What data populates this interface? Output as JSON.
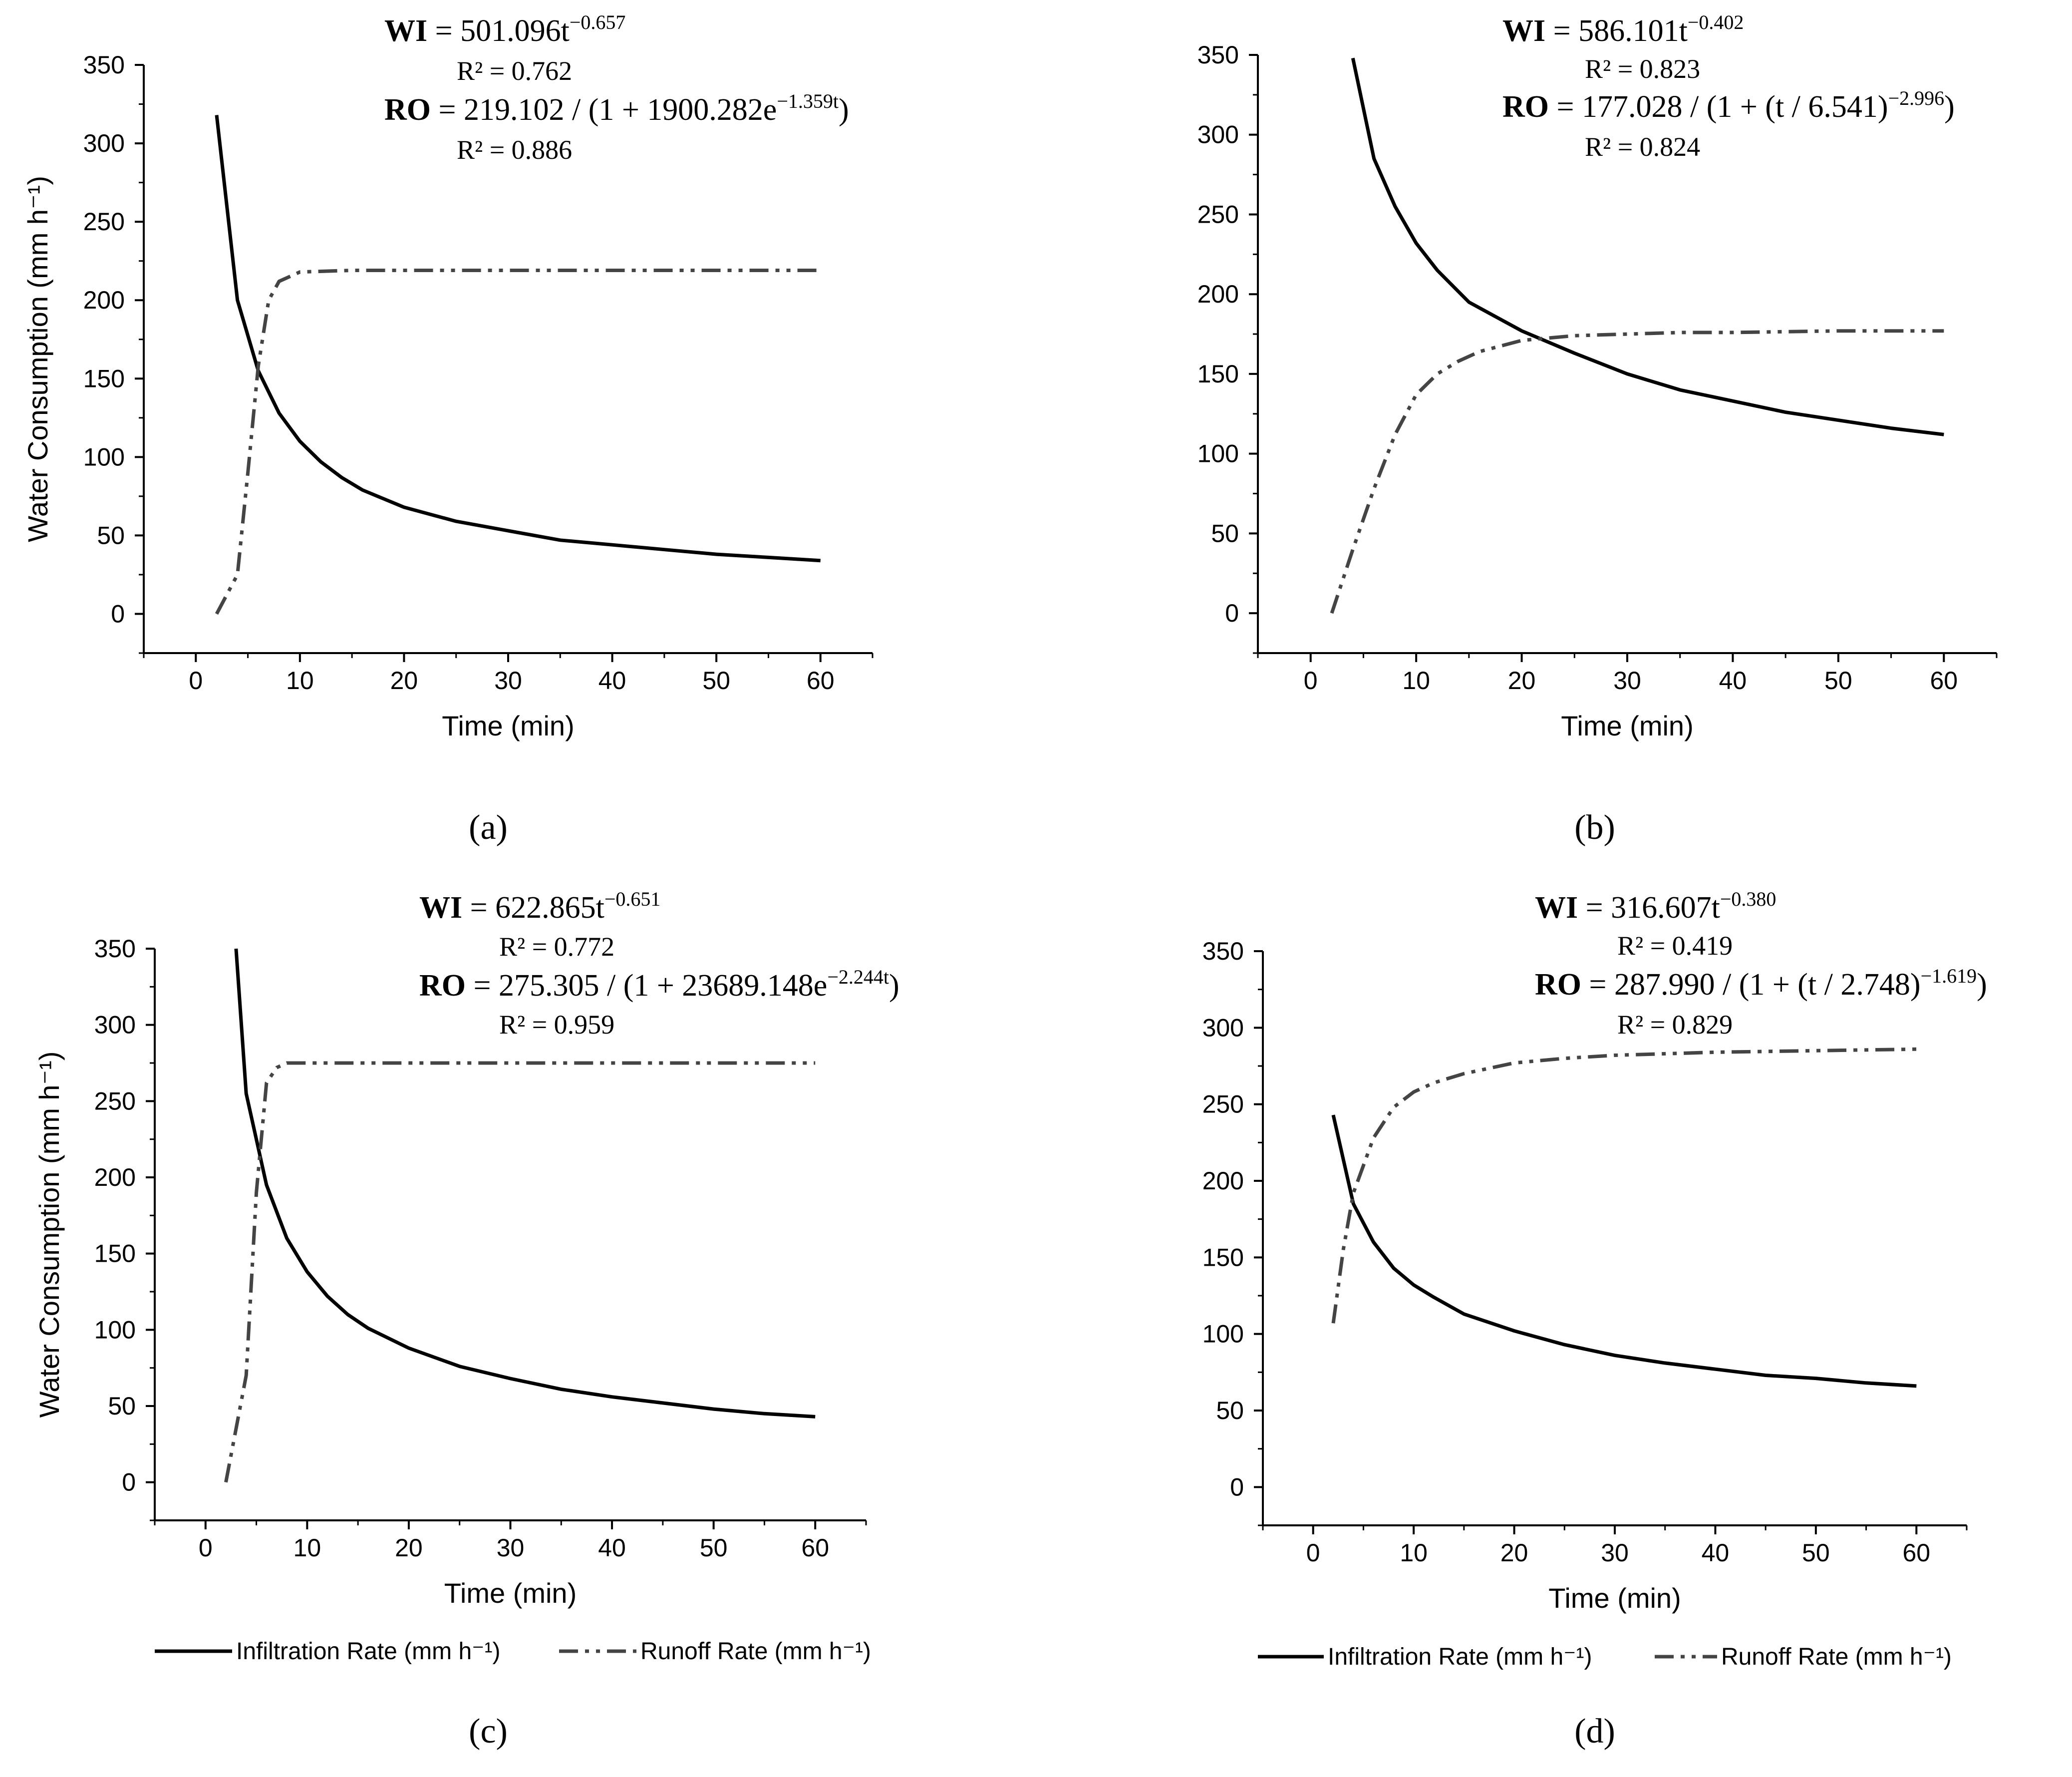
{
  "chart_data": [
    {
      "panel": "a",
      "type": "line",
      "xlabel": "Time (min)",
      "ylabel": "Water Consumption (mm h⁻¹)",
      "xlim": [
        -5,
        65
      ],
      "ylim": [
        -25,
        350
      ],
      "xticks": [
        0,
        10,
        20,
        30,
        40,
        50,
        60
      ],
      "yticks": [
        0,
        50,
        100,
        150,
        200,
        250,
        300,
        350
      ],
      "equations": {
        "wi_label": "WI",
        "wi_rhs": " = 501.096t",
        "wi_exp": "−0.657",
        "wi_r2": "R² = 0.762",
        "ro_label": "RO",
        "ro_rhs": " = 219.102 / (1 + 1900.282e",
        "ro_exp": "−1.359t",
        "ro_close": ")",
        "ro_r2": "R² = 0.886"
      },
      "series": [
        {
          "name": "Infiltration Rate (mm h⁻¹)",
          "style": "solid",
          "x": [
            2,
            4,
            6,
            8,
            10,
            12,
            14,
            16,
            20,
            25,
            30,
            35,
            40,
            45,
            50,
            55,
            60
          ],
          "y": [
            318,
            200,
            155,
            128,
            110,
            97,
            87,
            79,
            68,
            59,
            53,
            47,
            44,
            41,
            38,
            36,
            34
          ]
        },
        {
          "name": "Runoff Rate (mm h⁻¹)",
          "style": "dash-dot-dot",
          "x": [
            2,
            4,
            5,
            6,
            7,
            8,
            10,
            15,
            20,
            30,
            40,
            50,
            60
          ],
          "y": [
            0,
            25,
            90,
            158,
            200,
            212,
            218,
            219,
            219,
            219,
            219,
            219,
            219
          ]
        }
      ]
    },
    {
      "panel": "b",
      "type": "line",
      "xlabel": "Time (min)",
      "ylabel": "",
      "xlim": [
        -5,
        65
      ],
      "ylim": [
        -25,
        350
      ],
      "xticks": [
        0,
        10,
        20,
        30,
        40,
        50,
        60
      ],
      "yticks": [
        0,
        50,
        100,
        150,
        200,
        250,
        300,
        350
      ],
      "equations": {
        "wi_label": "WI",
        "wi_rhs": " = 586.101t",
        "wi_exp": "−0.402",
        "wi_r2": "R² = 0.823",
        "ro_label": "RO",
        "ro_rhs": " = 177.028 / (1 + (t / 6.541)",
        "ro_exp": "−2.996",
        "ro_close": ")",
        "ro_r2": "R² = 0.824"
      },
      "series": [
        {
          "name": "Infiltration Rate (mm h⁻¹)",
          "style": "solid",
          "x": [
            4,
            6,
            8,
            10,
            12,
            15,
            20,
            25,
            30,
            35,
            40,
            45,
            50,
            55,
            60
          ],
          "y": [
            348,
            285,
            255,
            232,
            215,
            195,
            177,
            163,
            150,
            140,
            133,
            126,
            121,
            116,
            112
          ]
        },
        {
          "name": "Runoff Rate (mm h⁻¹)",
          "style": "dash-dot-dot",
          "x": [
            2,
            4,
            6,
            8,
            10,
            12,
            14,
            16,
            20,
            25,
            30,
            35,
            40,
            50,
            60
          ],
          "y": [
            0,
            40,
            78,
            112,
            137,
            150,
            158,
            164,
            171,
            174,
            175,
            176,
            176,
            177,
            177
          ]
        }
      ]
    },
    {
      "panel": "c",
      "type": "line",
      "xlabel": "Time (min)",
      "ylabel": "Water Consumption (mm h⁻¹)",
      "xlim": [
        -5,
        65
      ],
      "ylim": [
        -25,
        350
      ],
      "xticks": [
        0,
        10,
        20,
        30,
        40,
        50,
        60
      ],
      "yticks": [
        0,
        50,
        100,
        150,
        200,
        250,
        300,
        350
      ],
      "equations": {
        "wi_label": "WI",
        "wi_rhs": " = 622.865t",
        "wi_exp": "−0.651",
        "wi_r2": "R² = 0.772",
        "ro_label": "RO",
        "ro_rhs": " = 275.305 / (1 + 23689.148e",
        "ro_exp": "−2.244t",
        "ro_close": ")",
        "ro_r2": "R² = 0.959"
      },
      "series": [
        {
          "name": "Infiltration Rate (mm h⁻¹)",
          "style": "solid",
          "x": [
            3,
            4,
            6,
            8,
            10,
            12,
            14,
            16,
            20,
            25,
            30,
            35,
            40,
            45,
            50,
            55,
            60
          ],
          "y": [
            350,
            255,
            195,
            160,
            138,
            122,
            110,
            101,
            88,
            76,
            68,
            61,
            56,
            52,
            48,
            45,
            43
          ]
        },
        {
          "name": "Runoff Rate (mm h⁻¹)",
          "style": "dash-dot-dot",
          "x": [
            2,
            4,
            5,
            6,
            7,
            8,
            10,
            15,
            20,
            30,
            40,
            50,
            60
          ],
          "y": [
            0,
            70,
            190,
            262,
            272,
            275,
            275,
            275,
            275,
            275,
            275,
            275,
            275
          ]
        }
      ]
    },
    {
      "panel": "d",
      "type": "line",
      "xlabel": "Time (min)",
      "ylabel": "",
      "xlim": [
        -5,
        65
      ],
      "ylim": [
        -25,
        350
      ],
      "xticks": [
        0,
        10,
        20,
        30,
        40,
        50,
        60
      ],
      "yticks": [
        0,
        50,
        100,
        150,
        200,
        250,
        300,
        350
      ],
      "equations": {
        "wi_label": "WI",
        "wi_rhs": " = 316.607t",
        "wi_exp": "−0.380",
        "wi_r2": "R² = 0.419",
        "ro_label": "RO",
        "ro_rhs": " = 287.990 / (1 + (t / 2.748)",
        "ro_exp": "−1.619",
        "ro_close": ")",
        "ro_r2": "R² = 0.829"
      },
      "series": [
        {
          "name": "Infiltration Rate (mm h⁻¹)",
          "style": "solid",
          "x": [
            2,
            4,
            6,
            8,
            10,
            12,
            15,
            20,
            25,
            30,
            35,
            40,
            45,
            50,
            55,
            60
          ],
          "y": [
            243,
            185,
            160,
            143,
            132,
            124,
            113,
            102,
            93,
            86,
            81,
            77,
            73,
            71,
            68,
            66
          ]
        },
        {
          "name": "Runoff Rate (mm h⁻¹)",
          "style": "dash-dot-dot",
          "x": [
            2,
            3,
            4,
            6,
            8,
            10,
            12,
            15,
            20,
            25,
            30,
            40,
            50,
            60
          ],
          "y": [
            107,
            155,
            192,
            228,
            248,
            258,
            264,
            270,
            277,
            280,
            282,
            284,
            285,
            286
          ]
        }
      ]
    }
  ],
  "panel_labels": [
    "(a)",
    "(b)",
    "(c)",
    "(d)"
  ],
  "legend": {
    "infiltration": "Infiltration Rate (mm h⁻¹)",
    "runoff": "Runoff Rate (mm h⁻¹)"
  }
}
